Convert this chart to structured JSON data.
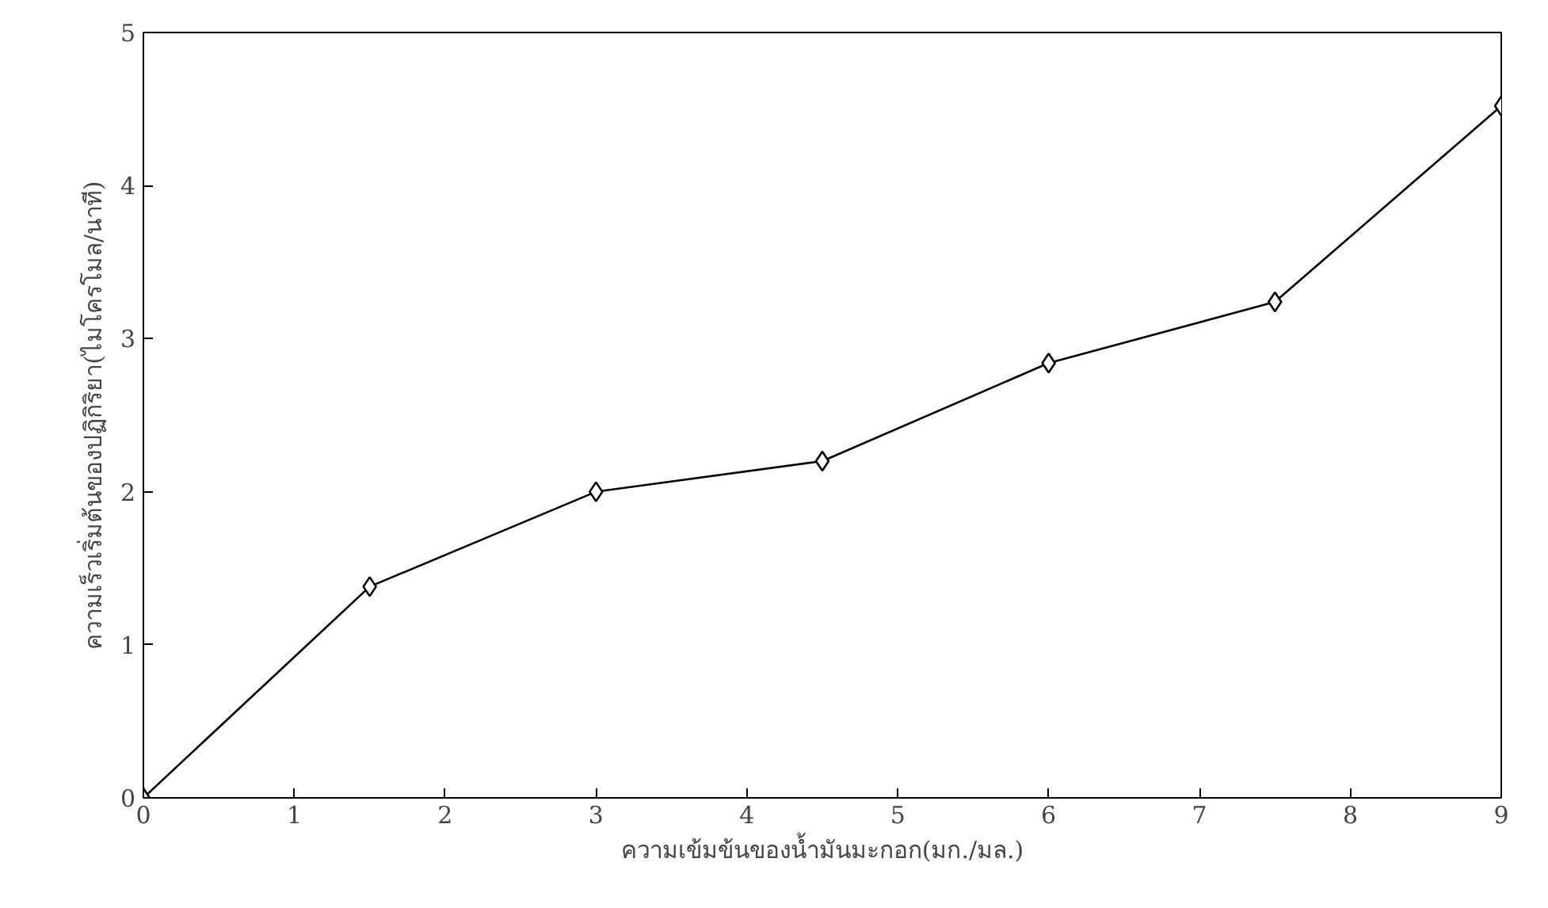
{
  "chart_data": {
    "type": "line",
    "xlabel": "ความเข้มข้นของน้ำมันมะกอก(มก./มล.)",
    "ylabel": "ความเร็วเริ่มต้นของปฏิกิริยา(ไมโครโมล/นาที)",
    "x": [
      0,
      1.5,
      3,
      4.5,
      6,
      7.5,
      9
    ],
    "series": [
      {
        "color": "#000000",
        "values": [
          0,
          1.38,
          2.0,
          2.2,
          2.84,
          3.24,
          4.52
        ]
      }
    ],
    "xlim": [
      0,
      9
    ],
    "ylim": [
      0,
      5
    ],
    "xticks": [
      0,
      1,
      2,
      3,
      4,
      5,
      6,
      7,
      8,
      9
    ],
    "yticks": [
      0,
      1,
      2,
      3,
      4,
      5
    ],
    "marker": "diamond",
    "line_style": "solid",
    "grid": false
  }
}
